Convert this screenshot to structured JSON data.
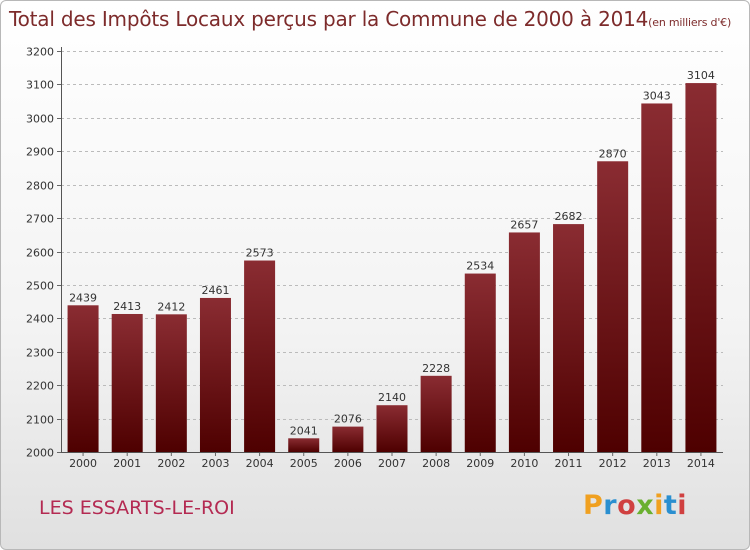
{
  "header": {
    "title": "Total des Impôts Locaux perçus par la Commune de 2000 à 2014",
    "unit": "(en milliers d'€)"
  },
  "footer": {
    "commune": "LES ESSARTS-LE-ROI",
    "logo_text": "Proxiti",
    "logo_colors": [
      "#f0a020",
      "#2a8fd0",
      "#d04040",
      "#6ab030",
      "#f0a020",
      "#2a8fd0",
      "#d04040"
    ]
  },
  "colors": {
    "bar_top": "#8a2c32",
    "bar_bottom": "#4e0000",
    "grid": "#bbbbbb",
    "axis_text": "#333333"
  },
  "chart_data": {
    "type": "bar",
    "title": "Total des Impôts Locaux perçus par la Commune de 2000 à 2014",
    "subtitle": "(en milliers d'€)",
    "xlabel": "",
    "ylabel": "",
    "categories": [
      "2000",
      "2001",
      "2002",
      "2003",
      "2004",
      "2005",
      "2006",
      "2007",
      "2008",
      "2009",
      "2010",
      "2011",
      "2012",
      "2013",
      "2014"
    ],
    "values": [
      2439,
      2413,
      2412,
      2461,
      2573,
      2041,
      2076,
      2140,
      2228,
      2534,
      2657,
      2682,
      2870,
      3043,
      3104
    ],
    "ylim": [
      2000,
      3200
    ],
    "yticks": [
      2000,
      2100,
      2200,
      2300,
      2400,
      2500,
      2600,
      2700,
      2800,
      2900,
      3000,
      3100,
      3200
    ],
    "grid": "horizontal dashed",
    "legend": "none"
  }
}
